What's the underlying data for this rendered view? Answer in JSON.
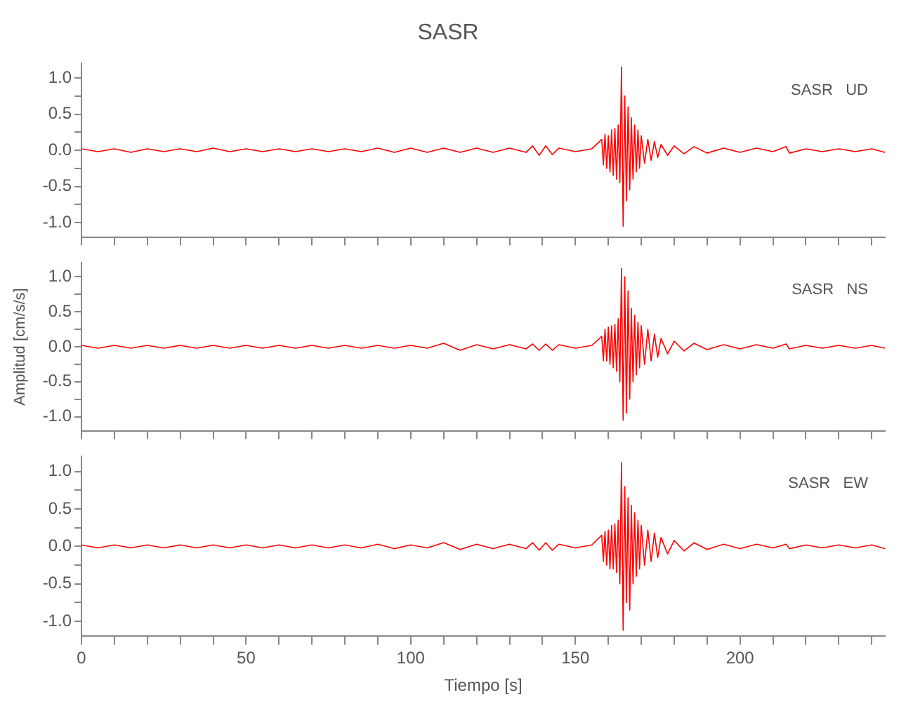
{
  "chart_data": [
    {
      "type": "line",
      "title": "SASR",
      "annotations": [
        "SASR   UD"
      ],
      "tick_labels": "y",
      "grid": false,
      "legend": false,
      "x": [
        0,
        5,
        10,
        15,
        20,
        25,
        30,
        35,
        40,
        45,
        50,
        55,
        60,
        65,
        70,
        75,
        80,
        85,
        90,
        95,
        100,
        105,
        110,
        115,
        120,
        125,
        130,
        135,
        137,
        139,
        141,
        143,
        145,
        150,
        155,
        158,
        158.5,
        159,
        159.5,
        160,
        160.5,
        161,
        161.5,
        162,
        162.5,
        163,
        163.5,
        164,
        164.5,
        165,
        165.5,
        166,
        166.5,
        167,
        167.5,
        168,
        168.5,
        169,
        169.5,
        170,
        171,
        172,
        173,
        174,
        175,
        176,
        178,
        180,
        183,
        186,
        190,
        195,
        200,
        205,
        210,
        214,
        215,
        220,
        225,
        230,
        235,
        240,
        244
      ],
      "series": [
        {
          "color": "#ff0000",
          "values": [
            0.02,
            -0.02,
            0.02,
            -0.03,
            0.02,
            -0.02,
            0.02,
            -0.02,
            0.03,
            -0.02,
            0.02,
            -0.02,
            0.02,
            -0.02,
            0.02,
            -0.02,
            0.02,
            -0.02,
            0.03,
            -0.03,
            0.03,
            -0.03,
            0.03,
            -0.03,
            0.03,
            -0.03,
            0.03,
            -0.03,
            0.06,
            -0.07,
            0.06,
            -0.06,
            0.03,
            -0.02,
            0.02,
            0.15,
            -0.2,
            0.22,
            -0.25,
            0.2,
            -0.3,
            0.28,
            -0.35,
            0.3,
            -0.4,
            0.35,
            -0.45,
            1.15,
            -1.05,
            0.75,
            -0.7,
            0.6,
            -0.55,
            0.45,
            -0.4,
            0.35,
            -0.3,
            0.28,
            -0.25,
            0.2,
            -0.18,
            0.15,
            -0.14,
            0.12,
            -0.1,
            0.08,
            -0.07,
            0.06,
            -0.05,
            0.05,
            -0.04,
            0.03,
            -0.03,
            0.03,
            -0.02,
            0.05,
            -0.04,
            0.02,
            -0.02,
            0.02,
            -0.02,
            0.02,
            -0.03
          ]
        }
      ],
      "xlim": [
        0,
        244
      ],
      "xticks": [
        0,
        {
          "value": 10,
          "label": null
        },
        {
          "value": 20,
          "label": null
        },
        {
          "value": 30,
          "label": null
        },
        {
          "value": 40,
          "label": null
        },
        50,
        {
          "value": 60,
          "label": null
        },
        {
          "value": 70,
          "label": null
        },
        {
          "value": 80,
          "label": null
        },
        {
          "value": 90,
          "label": null
        },
        100,
        {
          "value": 110,
          "label": null
        },
        {
          "value": 120,
          "label": null
        },
        {
          "value": 130,
          "label": null
        },
        {
          "value": 140,
          "label": null
        },
        150,
        {
          "value": 160,
          "label": null
        },
        {
          "value": 170,
          "label": null
        },
        {
          "value": 180,
          "label": null
        },
        {
          "value": 190,
          "label": null
        },
        200,
        {
          "value": 210,
          "label": null
        },
        {
          "value": 220,
          "label": null
        },
        {
          "value": 230,
          "label": null
        },
        {
          "value": 240,
          "label": null
        }
      ],
      "ylim": [
        -1.2,
        1.2
      ],
      "yticks": [
        {
          "value": -1,
          "label": "-1.0"
        },
        {
          "value": -0.75,
          "label": null
        },
        {
          "value": -0.5,
          "label": "-0.5"
        },
        {
          "value": -0.25,
          "label": null
        },
        {
          "value": 0,
          "label": "0.0"
        },
        {
          "value": 0.25,
          "label": null
        },
        {
          "value": 0.5,
          "label": "0.5"
        },
        {
          "value": 0.75,
          "label": null
        },
        {
          "value": 1,
          "label": "1.0"
        }
      ]
    },
    {
      "type": "line",
      "ylabel": "Amplitud [cm/s/s]",
      "annotations": [
        "SASR   NS"
      ],
      "tick_labels": "y",
      "grid": false,
      "legend": false,
      "x": [
        0,
        5,
        10,
        15,
        20,
        25,
        30,
        35,
        40,
        45,
        50,
        55,
        60,
        65,
        70,
        75,
        80,
        85,
        90,
        95,
        100,
        105,
        110,
        115,
        120,
        125,
        130,
        135,
        137,
        139,
        141,
        143,
        145,
        150,
        155,
        158,
        158.5,
        159,
        159.5,
        160,
        160.5,
        161,
        161.5,
        162,
        162.5,
        163,
        163.5,
        164,
        164.5,
        165,
        165.5,
        166,
        166.5,
        167,
        167.5,
        168,
        168.5,
        169,
        169.5,
        170,
        171,
        172,
        173,
        174,
        175,
        176,
        178,
        180,
        183,
        186,
        190,
        195,
        200,
        205,
        210,
        214,
        215,
        220,
        225,
        230,
        235,
        240,
        244
      ],
      "series": [
        {
          "color": "#ff0000",
          "values": [
            0.02,
            -0.02,
            0.02,
            -0.02,
            0.02,
            -0.02,
            0.02,
            -0.02,
            0.02,
            -0.02,
            0.02,
            -0.02,
            0.02,
            -0.02,
            0.02,
            -0.02,
            0.02,
            -0.02,
            0.02,
            -0.02,
            0.02,
            -0.02,
            0.05,
            -0.05,
            0.03,
            -0.03,
            0.03,
            -0.03,
            0.04,
            -0.05,
            0.04,
            -0.05,
            0.03,
            -0.02,
            0.02,
            0.15,
            -0.2,
            0.25,
            -0.2,
            0.28,
            -0.25,
            0.3,
            -0.3,
            0.32,
            -0.35,
            0.4,
            -0.5,
            1.12,
            -1.05,
            1.0,
            -0.95,
            0.8,
            -0.75,
            0.55,
            -0.5,
            0.45,
            -0.4,
            0.35,
            -0.3,
            0.3,
            -0.25,
            0.25,
            -0.2,
            0.18,
            -0.15,
            0.12,
            -0.1,
            0.08,
            -0.06,
            0.05,
            -0.04,
            0.03,
            -0.03,
            0.03,
            -0.02,
            0.04,
            -0.03,
            0.02,
            -0.02,
            0.02,
            -0.02,
            0.02,
            -0.02
          ]
        }
      ],
      "xlim": [
        0,
        244
      ],
      "xticks": [
        0,
        {
          "value": 10,
          "label": null
        },
        {
          "value": 20,
          "label": null
        },
        {
          "value": 30,
          "label": null
        },
        {
          "value": 40,
          "label": null
        },
        50,
        {
          "value": 60,
          "label": null
        },
        {
          "value": 70,
          "label": null
        },
        {
          "value": 80,
          "label": null
        },
        {
          "value": 90,
          "label": null
        },
        100,
        {
          "value": 110,
          "label": null
        },
        {
          "value": 120,
          "label": null
        },
        {
          "value": 130,
          "label": null
        },
        {
          "value": 140,
          "label": null
        },
        150,
        {
          "value": 160,
          "label": null
        },
        {
          "value": 170,
          "label": null
        },
        {
          "value": 180,
          "label": null
        },
        {
          "value": 190,
          "label": null
        },
        200,
        {
          "value": 210,
          "label": null
        },
        {
          "value": 220,
          "label": null
        },
        {
          "value": 230,
          "label": null
        },
        {
          "value": 240,
          "label": null
        }
      ],
      "ylim": [
        -1.2,
        1.2
      ],
      "yticks": [
        {
          "value": -1,
          "label": "-1.0"
        },
        {
          "value": -0.75,
          "label": null
        },
        {
          "value": -0.5,
          "label": "-0.5"
        },
        {
          "value": -0.25,
          "label": null
        },
        {
          "value": 0,
          "label": "0.0"
        },
        {
          "value": 0.25,
          "label": null
        },
        {
          "value": 0.5,
          "label": "0.5"
        },
        {
          "value": 0.75,
          "label": null
        },
        {
          "value": 1,
          "label": "1.0"
        }
      ]
    },
    {
      "type": "line",
      "xlabel": "Tiempo [s]",
      "annotations": [
        "SASR   EW"
      ],
      "grid": false,
      "legend": false,
      "x": [
        0,
        5,
        10,
        15,
        20,
        25,
        30,
        35,
        40,
        45,
        50,
        55,
        60,
        65,
        70,
        75,
        80,
        85,
        90,
        95,
        100,
        105,
        110,
        115,
        120,
        125,
        130,
        135,
        137,
        139,
        141,
        143,
        145,
        150,
        155,
        158,
        158.5,
        159,
        159.5,
        160,
        160.5,
        161,
        161.5,
        162,
        162.5,
        163,
        163.5,
        164,
        164.5,
        165,
        165.5,
        166,
        166.5,
        167,
        167.5,
        168,
        168.5,
        169,
        169.5,
        170,
        171,
        172,
        173,
        174,
        175,
        176,
        178,
        180,
        183,
        186,
        190,
        195,
        200,
        205,
        210,
        214,
        215,
        220,
        225,
        230,
        235,
        240,
        244
      ],
      "series": [
        {
          "color": "#ff0000",
          "values": [
            0.02,
            -0.02,
            0.02,
            -0.02,
            0.02,
            -0.02,
            0.02,
            -0.02,
            0.02,
            -0.02,
            0.02,
            -0.02,
            0.02,
            -0.02,
            0.02,
            -0.02,
            0.02,
            -0.02,
            0.03,
            -0.03,
            0.02,
            -0.02,
            0.05,
            -0.04,
            0.03,
            -0.03,
            0.03,
            -0.03,
            0.05,
            -0.05,
            0.05,
            -0.05,
            0.03,
            -0.02,
            0.02,
            0.15,
            -0.2,
            0.2,
            -0.25,
            0.22,
            -0.3,
            0.28,
            -0.3,
            0.3,
            -0.35,
            0.35,
            -0.5,
            1.12,
            -1.12,
            0.8,
            -0.75,
            0.65,
            -0.85,
            0.55,
            -0.5,
            0.45,
            -0.4,
            0.35,
            -0.3,
            0.28,
            -0.25,
            0.22,
            -0.2,
            0.18,
            -0.15,
            0.12,
            -0.1,
            0.08,
            -0.06,
            0.05,
            -0.04,
            0.03,
            -0.03,
            0.03,
            -0.02,
            0.03,
            -0.03,
            0.02,
            -0.02,
            0.02,
            -0.02,
            0.02,
            -0.03
          ]
        }
      ],
      "xlim": [
        0,
        244
      ],
      "xticks": [
        0,
        {
          "value": 10,
          "label": null
        },
        {
          "value": 20,
          "label": null
        },
        {
          "value": 30,
          "label": null
        },
        {
          "value": 40,
          "label": null
        },
        50,
        {
          "value": 60,
          "label": null
        },
        {
          "value": 70,
          "label": null
        },
        {
          "value": 80,
          "label": null
        },
        {
          "value": 90,
          "label": null
        },
        100,
        {
          "value": 110,
          "label": null
        },
        {
          "value": 120,
          "label": null
        },
        {
          "value": 130,
          "label": null
        },
        {
          "value": 140,
          "label": null
        },
        150,
        {
          "value": 160,
          "label": null
        },
        {
          "value": 170,
          "label": null
        },
        {
          "value": 180,
          "label": null
        },
        {
          "value": 190,
          "label": null
        },
        200,
        {
          "value": 210,
          "label": null
        },
        {
          "value": 220,
          "label": null
        },
        {
          "value": 230,
          "label": null
        },
        {
          "value": 240,
          "label": null
        }
      ],
      "ylim": [
        -1.2,
        1.2
      ],
      "yticks": [
        {
          "value": -1,
          "label": "-1.0"
        },
        {
          "value": -0.75,
          "label": null
        },
        {
          "value": -0.5,
          "label": "-0.5"
        },
        {
          "value": -0.25,
          "label": null
        },
        {
          "value": 0,
          "label": "0.0"
        },
        {
          "value": 0.25,
          "label": null
        },
        {
          "value": 0.5,
          "label": "0.5"
        },
        {
          "value": 0.75,
          "label": null
        },
        {
          "value": 1,
          "label": "1.0"
        }
      ]
    }
  ]
}
